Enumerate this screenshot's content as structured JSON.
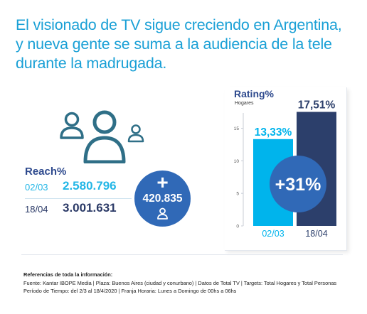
{
  "headline": {
    "line1": "El visionado de TV sigue creciendo en Argentina,",
    "line2": "y nueva gente se suma a la audiencia de la tele",
    "line3": "durante la madrugada."
  },
  "icons": {
    "people": "people-group-icon",
    "person": "person-icon"
  },
  "reach": {
    "title": "Reach%",
    "rows": [
      {
        "date": "02/03",
        "value": "2.580.796"
      },
      {
        "date": "18/04",
        "value": "3.001.631"
      }
    ],
    "difference": {
      "sign": "+",
      "value": "420.835"
    }
  },
  "rating": {
    "title": "Rating%",
    "subtitle": "Hogares",
    "growth_label": "+31%"
  },
  "chart_data": {
    "type": "bar",
    "title": "Rating%",
    "ylabel": "Hogares",
    "categories": [
      "02/03",
      "18/04"
    ],
    "values": [
      13.33,
      17.51
    ],
    "value_labels": [
      "13,33%",
      "17,51%"
    ],
    "yticks": [
      "0",
      "5",
      "10",
      "15"
    ],
    "ylim": [
      0,
      18
    ],
    "colors": [
      "#00b4ec",
      "#2c3f6b"
    ],
    "annotation": "+31%"
  },
  "colors": {
    "headline": "#1aa0d6",
    "navy": "#2b3a67",
    "light_blue": "#00b4ec",
    "circle_blue": "#3069b7",
    "reach_title": "#2e4a8e"
  },
  "references": {
    "title": "Referencias de toda la información:",
    "line1": "Fuente: Kantar IBOPE Media  |  Plaza: Buenos Aires (ciudad y conurbano)  |  Datos de Total TV  |  Targets: Total Hogares y Total Personas",
    "line2": "Período de Tiempo: del 2/3 al 18/4/2020  |  Franja Horaria: Lunes a Domingo de 00hs a 06hs"
  }
}
